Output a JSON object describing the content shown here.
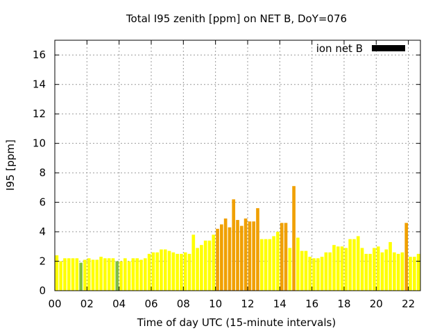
{
  "chart_data": {
    "type": "bar",
    "title": "Total I95 zenith [ppm] on NET B, DoY=076",
    "xlabel": "Time of day UTC (15-minute intervals)",
    "ylabel": "I95 [ppm]",
    "xlim": [
      0,
      22.75
    ],
    "ylim": [
      0,
      17
    ],
    "x_ticks": [
      0,
      2,
      4,
      6,
      8,
      10,
      12,
      14,
      16,
      18,
      20,
      22
    ],
    "x_tick_labels": [
      "00",
      "02",
      "04",
      "06",
      "08",
      "10",
      "12",
      "14",
      "16",
      "18",
      "20",
      "22"
    ],
    "y_ticks": [
      0,
      2,
      4,
      6,
      8,
      10,
      12,
      14,
      16
    ],
    "y_tick_labels": [
      "0",
      "2",
      "4",
      "6",
      "8",
      "10",
      "12",
      "14",
      "16"
    ],
    "grid": true,
    "legend": {
      "label": "ion net B",
      "color": "#000000",
      "placement": "top-right"
    },
    "bar_interval_hours": 0.25,
    "colors": {
      "yellow": "#ffff00",
      "orange": "#f0a000",
      "green": "#80c040"
    },
    "series": [
      {
        "values": [
          2.4,
          2.0,
          2.2,
          2.2,
          2.2,
          2.2,
          1.9,
          2.1,
          2.2,
          2.1,
          2.1,
          2.3,
          2.2,
          2.2,
          2.2,
          2.0,
          2.0,
          2.2,
          2.0,
          2.2,
          2.2,
          2.1,
          2.2,
          2.5,
          2.6,
          2.6,
          2.8,
          2.8,
          2.7,
          2.6,
          2.5,
          2.5,
          2.6,
          2.5,
          3.8,
          2.9,
          3.1,
          3.4,
          3.4,
          3.8,
          4.2,
          4.5,
          4.9,
          4.3,
          6.2,
          4.8,
          4.4,
          4.9,
          4.7,
          4.7,
          5.6,
          3.5,
          3.5,
          3.5,
          3.7,
          4.0,
          4.6,
          4.6,
          2.9,
          7.1,
          3.6,
          2.7,
          2.7,
          2.3,
          2.2,
          2.2,
          2.3,
          2.6,
          2.6,
          3.1,
          3.0,
          3.0,
          2.9,
          3.5,
          3.5,
          3.7,
          2.9,
          2.5,
          2.5,
          2.9,
          3.0,
          2.6,
          2.8,
          3.3,
          2.6,
          2.5,
          2.6,
          4.6,
          2.3,
          2.3,
          2.5
        ],
        "colors": [
          "yellow",
          "yellow",
          "yellow",
          "yellow",
          "yellow",
          "yellow",
          "green",
          "yellow",
          "yellow",
          "yellow",
          "yellow",
          "yellow",
          "yellow",
          "yellow",
          "yellow",
          "green",
          "yellow",
          "yellow",
          "yellow",
          "yellow",
          "yellow",
          "yellow",
          "yellow",
          "yellow",
          "yellow",
          "yellow",
          "yellow",
          "yellow",
          "yellow",
          "yellow",
          "yellow",
          "yellow",
          "yellow",
          "yellow",
          "yellow",
          "yellow",
          "yellow",
          "yellow",
          "yellow",
          "yellow",
          "orange",
          "orange",
          "orange",
          "orange",
          "orange",
          "orange",
          "orange",
          "orange",
          "orange",
          "orange",
          "orange",
          "yellow",
          "yellow",
          "yellow",
          "yellow",
          "yellow",
          "orange",
          "orange",
          "yellow",
          "orange",
          "yellow",
          "yellow",
          "yellow",
          "yellow",
          "yellow",
          "yellow",
          "yellow",
          "yellow",
          "yellow",
          "yellow",
          "yellow",
          "yellow",
          "yellow",
          "yellow",
          "yellow",
          "yellow",
          "yellow",
          "yellow",
          "yellow",
          "yellow",
          "yellow",
          "yellow",
          "yellow",
          "yellow",
          "yellow",
          "yellow",
          "yellow",
          "orange",
          "yellow",
          "yellow",
          "yellow"
        ]
      }
    ]
  }
}
